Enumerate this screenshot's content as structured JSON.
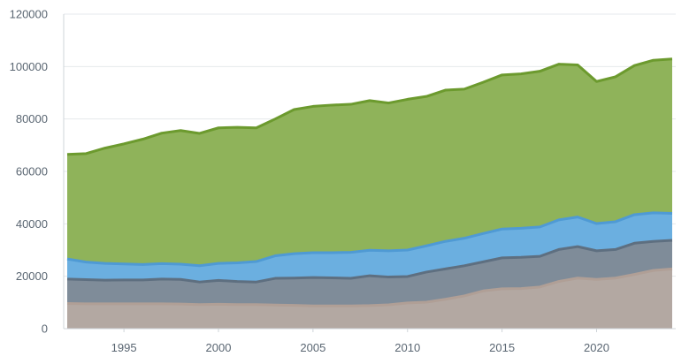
{
  "chart_data": {
    "type": "area",
    "stacked": false,
    "title": "",
    "xlabel": "",
    "ylabel": "",
    "xlim": [
      1992,
      2024
    ],
    "ylim": [
      0,
      120000
    ],
    "y_ticks": [
      "0",
      "20000",
      "40000",
      "60000",
      "80000",
      "100000",
      "120000"
    ],
    "x_ticks": [
      "1995",
      "2000",
      "2005",
      "2010",
      "2015",
      "2020"
    ],
    "grid": "horizontal",
    "legend": "none",
    "x": [
      1992,
      1993,
      1994,
      1995,
      1996,
      1997,
      1998,
      1999,
      2000,
      2001,
      2002,
      2003,
      2004,
      2005,
      2006,
      2007,
      2008,
      2009,
      2010,
      2011,
      2012,
      2013,
      2014,
      2015,
      2016,
      2017,
      2018,
      2019,
      2020,
      2021,
      2022,
      2023,
      2024
    ],
    "series": [
      {
        "fill": "#8fb35a",
        "stroke": "#6c9a2e",
        "values": [
          66500,
          66800,
          68900,
          70500,
          72300,
          74600,
          75600,
          74500,
          76600,
          76800,
          76600,
          80000,
          83600,
          84800,
          85300,
          85600,
          87000,
          86100,
          87500,
          88600,
          91000,
          91400,
          94000,
          96800,
          97200,
          98200,
          100900,
          100600,
          94300,
          96100,
          100400,
          102400,
          102900
        ]
      },
      {
        "fill": "#6bafe0",
        "stroke": "#4f9ad4",
        "values": [
          26600,
          25400,
          24900,
          24700,
          24500,
          24800,
          24600,
          24000,
          24900,
          25100,
          25600,
          27800,
          28600,
          29000,
          29000,
          29100,
          29900,
          29700,
          30000,
          31600,
          33300,
          34500,
          36300,
          38000,
          38300,
          38800,
          41500,
          42600,
          40100,
          40800,
          43500,
          44200,
          44000
        ]
      },
      {
        "fill": "#7f8c99",
        "stroke": "#5e6f80",
        "values": [
          18900,
          18700,
          18500,
          18600,
          18600,
          18900,
          18800,
          17800,
          18400,
          18000,
          17800,
          19200,
          19300,
          19500,
          19400,
          19200,
          20200,
          19700,
          19900,
          21600,
          22800,
          24000,
          25500,
          27000,
          27200,
          27600,
          30200,
          31300,
          29700,
          30200,
          32600,
          33300,
          33700
        ]
      },
      {
        "fill": "#b3a8a2",
        "stroke": "#b09f96",
        "values": [
          9600,
          9500,
          9500,
          9500,
          9500,
          9500,
          9400,
          9200,
          9300,
          9200,
          9200,
          9000,
          8900,
          8700,
          8700,
          8700,
          8800,
          9100,
          9800,
          10100,
          11200,
          12500,
          14400,
          15200,
          15300,
          15900,
          18000,
          19300,
          18800,
          19300,
          20700,
          22200,
          22800
        ]
      }
    ]
  }
}
